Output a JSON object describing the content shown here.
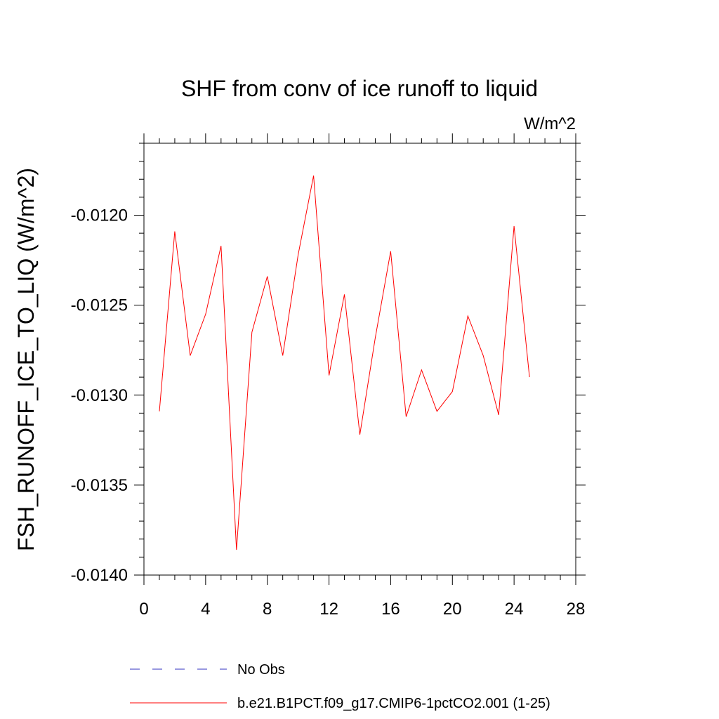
{
  "chart_data": {
    "type": "line",
    "title": "SHF from conv of ice runoff to liquid",
    "units": "W/m^2",
    "ylabel": "FSH_RUNOFF_ICE_TO_LIQ  (W/m^2)",
    "xlabel": "",
    "xlim": [
      0,
      28
    ],
    "ylim": [
      -0.014,
      -0.0116
    ],
    "x_ticks": [
      "0",
      "4",
      "8",
      "12",
      "16",
      "20",
      "24",
      "28"
    ],
    "y_ticks": [
      "-0.0120",
      "-0.0125",
      "-0.0130",
      "-0.0135",
      "-0.0140"
    ],
    "grid": false,
    "legend_position": "bottom",
    "series": [
      {
        "name": "b.e21.B1PCT.f09_g17.CMIP6-1pctCO2.001 (1-25)",
        "color": "#ff0000",
        "style": "solid",
        "x": [
          1,
          2,
          3,
          4,
          5,
          6,
          7,
          8,
          9,
          10,
          11,
          12,
          13,
          14,
          15,
          16,
          17,
          18,
          19,
          20,
          21,
          22,
          23,
          24,
          25
        ],
        "values": [
          -0.01309,
          -0.01209,
          -0.01278,
          -0.01255,
          -0.01217,
          -0.01386,
          -0.01265,
          -0.01234,
          -0.01278,
          -0.01222,
          -0.01178,
          -0.01289,
          -0.01244,
          -0.01322,
          -0.01268,
          -0.0122,
          -0.01312,
          -0.01286,
          -0.01309,
          -0.01298,
          -0.01256,
          -0.01278,
          -0.01311,
          -0.01206,
          -0.0129
        ]
      }
    ],
    "legend": [
      {
        "label": "No Obs",
        "color": "#3030c0",
        "style": "dashed"
      },
      {
        "label": "b.e21.B1PCT.f09_g17.CMIP6-1pctCO2.001 (1-25)",
        "color": "#ff0000",
        "style": "solid"
      }
    ]
  }
}
